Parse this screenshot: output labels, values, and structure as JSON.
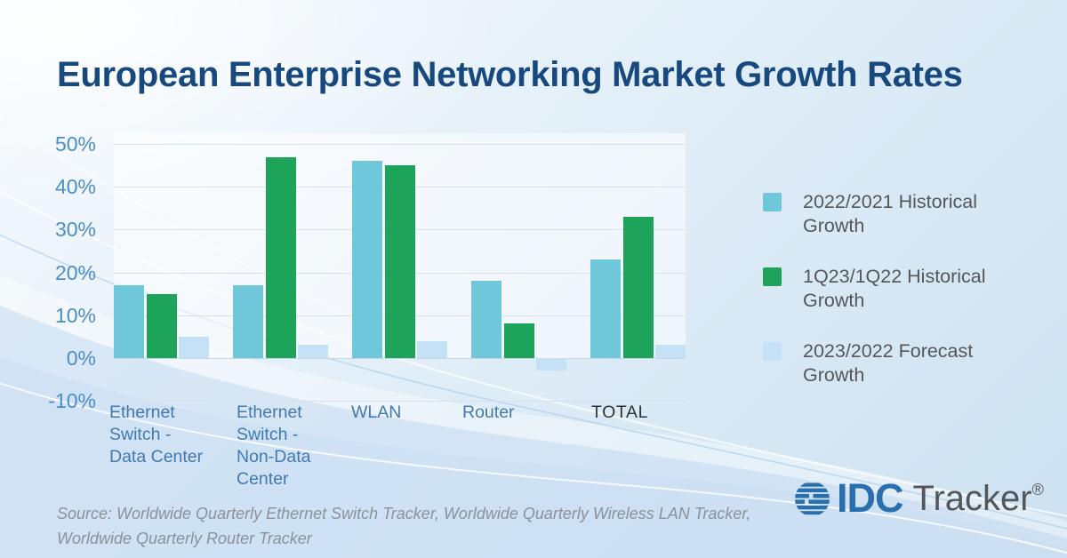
{
  "title": "European Enterprise Networking Market Growth Rates",
  "chart_data": {
    "type": "bar",
    "title": "European Enterprise Networking Market Growth Rates",
    "categories": [
      {
        "label": "Ethernet Switch - Data Center",
        "lines": [
          "Ethernet",
          "Switch -",
          "Data Center"
        ],
        "emphasis": false
      },
      {
        "label": "Ethernet Switch - Non-Data Center",
        "lines": [
          "Ethernet",
          "Switch -",
          "Non-Data",
          "Center"
        ],
        "emphasis": false
      },
      {
        "label": "WLAN",
        "lines": [
          "WLAN"
        ],
        "emphasis": false
      },
      {
        "label": "Router",
        "lines": [
          "Router"
        ],
        "emphasis": false
      },
      {
        "label": "TOTAL",
        "lines": [
          "TOTAL"
        ],
        "emphasis": true
      }
    ],
    "series": [
      {
        "name": "2022/2021 Historical Growth",
        "color": "#6fc8da",
        "values": [
          17,
          17,
          46,
          18,
          23
        ]
      },
      {
        "name": "1Q23/1Q22 Historical Growth",
        "color": "#1ea35a",
        "values": [
          15,
          47,
          45,
          8,
          33
        ]
      },
      {
        "name": "2023/2022 Forecast Growth",
        "color": "#c5e1f5",
        "values": [
          5,
          3,
          4,
          -3,
          3
        ]
      }
    ],
    "xlabel": "",
    "ylabel": "",
    "ylim": [
      -10,
      50
    ],
    "ytick_step": 10,
    "yticks": [
      "50%",
      "40%",
      "30%",
      "20%",
      "10%",
      "0%",
      "-10%"
    ],
    "grid": true,
    "legend_position": "right"
  },
  "legend": {
    "items": [
      {
        "label": "2022/2021 Historical Growth",
        "color": "#6fc8da"
      },
      {
        "label": "1Q23/1Q22 Historical Growth",
        "color": "#1ea35a"
      },
      {
        "label": "2023/2022 Forecast Growth",
        "color": "#c5e1f5"
      }
    ]
  },
  "source_note": "Source: Worldwide Quarterly Ethernet Switch Tracker, Worldwide Quarterly Wireless LAN Tracker, Worldwide Quarterly Router Tracker",
  "logo": {
    "brand": "IDC",
    "product": "Tracker",
    "registered": "®"
  },
  "colors": {
    "title": "#17497e",
    "axis_labels": "#4a8ec8",
    "category_labels": "#4179b0",
    "category_emphasis": "#2e3338",
    "legend_text": "#54565a",
    "gridline": "#d5e2ee",
    "source_text": "#8b9197",
    "logo_blue": "#2a6fad",
    "logo_gray": "#53575c",
    "background_top": "#f4f9fd",
    "background_bottom": "#cde1f1"
  }
}
